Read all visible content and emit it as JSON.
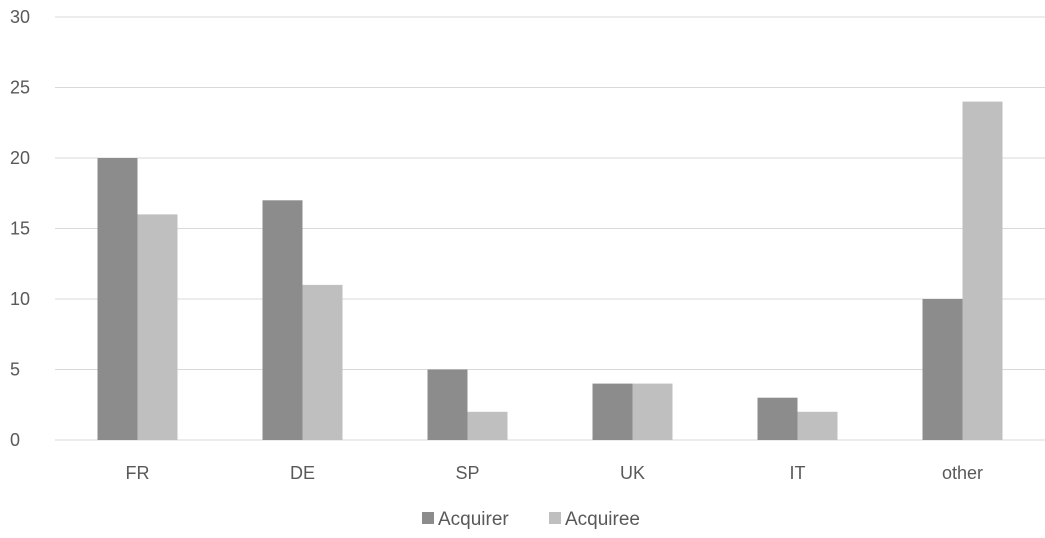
{
  "chart_data": {
    "type": "bar",
    "categories": [
      "FR",
      "DE",
      "SP",
      "UK",
      "IT",
      "other"
    ],
    "series": [
      {
        "name": "Acquirer",
        "values": [
          20,
          17,
          5,
          4,
          3,
          10
        ],
        "color": "#8c8c8c"
      },
      {
        "name": "Acquiree",
        "values": [
          16,
          11,
          2,
          4,
          2,
          24
        ],
        "color": "#bfbfbf"
      }
    ],
    "yticks": [
      0,
      5,
      10,
      15,
      20,
      25,
      30
    ],
    "ylim": [
      0,
      30
    ],
    "title": "",
    "xlabel": "",
    "ylabel": "",
    "grid": true,
    "legend_position": "bottom-center"
  }
}
